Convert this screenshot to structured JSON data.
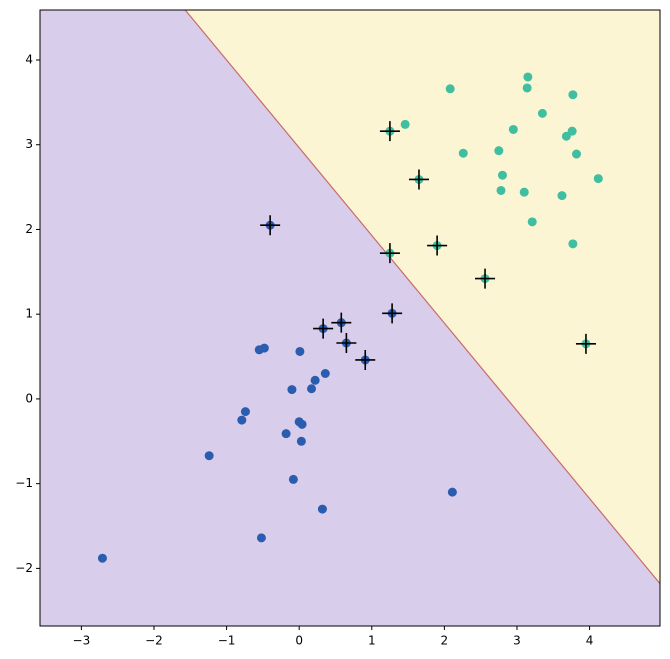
{
  "chart_data": {
    "type": "scatter",
    "xlim": [
      -3.57,
      4.97
    ],
    "ylim": [
      -2.68,
      4.59
    ],
    "xticks": [
      {
        "value": -3,
        "label": "−3"
      },
      {
        "value": -2,
        "label": "−2"
      },
      {
        "value": -1,
        "label": "−1"
      },
      0,
      1,
      2,
      3,
      4
    ],
    "yticks": [
      {
        "value": -2,
        "label": "−2"
      },
      {
        "value": -1,
        "label": "−1"
      },
      0,
      1,
      2,
      3,
      4
    ],
    "decision_boundary": {
      "x": [
        -1.57,
        4.97
      ],
      "y": [
        4.59,
        -2.18
      ],
      "color": "#c96a6a"
    },
    "region_colors": [
      "#d8cdea",
      "#fcf5d4"
    ],
    "series": [
      {
        "color": "#2a5caf",
        "x": [
          -2.71,
          -1.24,
          -0.74,
          -0.79,
          -0.52,
          -0.55,
          -0.48,
          0.01,
          -0.1,
          0.17,
          0.22,
          0.36,
          -0.18,
          0.0,
          0.04,
          0.03,
          -0.08,
          0.32,
          2.11,
          -0.4,
          0.33,
          0.58,
          0.65,
          0.91,
          1.28
        ],
        "y": [
          -1.88,
          -0.67,
          -0.15,
          -0.25,
          -1.64,
          0.58,
          0.6,
          0.56,
          0.11,
          0.12,
          0.22,
          0.3,
          -0.41,
          -0.27,
          -0.3,
          -0.5,
          -0.95,
          -1.3,
          -1.1,
          2.05,
          0.83,
          0.9,
          0.66,
          0.46,
          1.01
        ]
      },
      {
        "color": "#3fbfa0",
        "x": [
          3.15,
          2.08,
          3.14,
          3.77,
          1.46,
          3.35,
          2.95,
          3.76,
          3.68,
          2.26,
          2.75,
          3.82,
          2.8,
          4.12,
          2.78,
          3.1,
          3.62,
          3.21,
          3.77,
          1.25,
          1.65,
          1.25,
          1.9,
          2.56,
          3.95
        ],
        "y": [
          3.8,
          3.66,
          3.67,
          3.59,
          3.24,
          3.37,
          3.18,
          3.16,
          3.1,
          2.9,
          2.93,
          2.89,
          2.64,
          2.6,
          2.46,
          2.44,
          2.4,
          2.09,
          1.83,
          3.16,
          2.59,
          1.72,
          1.81,
          1.42,
          0.65
        ]
      }
    ],
    "support_vectors": {
      "color": "#000000",
      "x": [
        -0.4,
        0.33,
        0.58,
        0.65,
        0.91,
        1.28,
        1.25,
        1.65,
        1.25,
        1.9,
        2.56,
        3.95
      ],
      "y": [
        2.05,
        0.83,
        0.9,
        0.66,
        0.46,
        1.01,
        3.16,
        2.59,
        1.72,
        1.81,
        1.42,
        0.65
      ]
    }
  }
}
